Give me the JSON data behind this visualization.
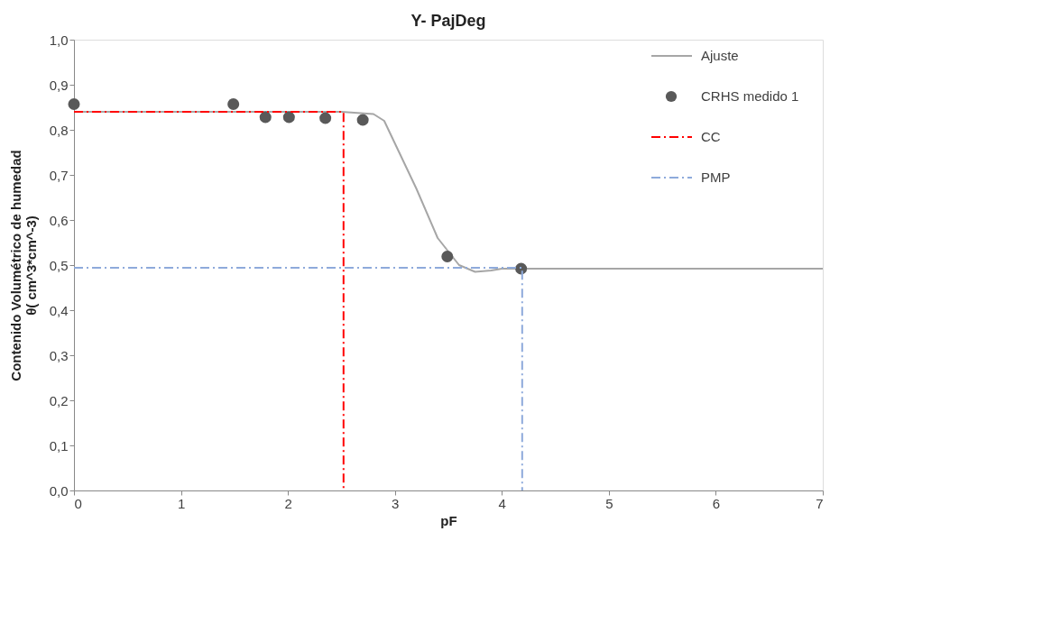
{
  "chart_data": {
    "type": "line",
    "title": "Y- PajDeg",
    "xlabel": "pF",
    "ylabel": "Contenido Volumétrico de humedad\nθ( cm^3*cm^-3)",
    "xlim": [
      0,
      7
    ],
    "xticks": [
      0,
      1,
      2,
      3,
      4,
      5,
      6,
      7
    ],
    "ylim": [
      0,
      1
    ],
    "yticks": [
      {
        "value": 0,
        "label": "0,0"
      },
      {
        "value": 0.1,
        "label": "0,1"
      },
      {
        "value": 0.2,
        "label": "0,2"
      },
      {
        "value": 0.3,
        "label": "0,3"
      },
      {
        "value": 0.4,
        "label": "0,4"
      },
      {
        "value": 0.5,
        "label": "0,5"
      },
      {
        "value": 0.6,
        "label": "0,6"
      },
      {
        "value": 0.7,
        "label": "0,7"
      },
      {
        "value": 0.8,
        "label": "0,8"
      },
      {
        "value": 0.9,
        "label": "0,9"
      },
      {
        "value": 1,
        "label": "1,0"
      }
    ],
    "grid": false,
    "legend": "top right",
    "series": [
      {
        "name": "Ajuste",
        "color": "#a6a6a6",
        "line_style": "solid",
        "x": [
          0,
          2.5,
          2.8,
          2.9,
          3.0,
          3.2,
          3.4,
          3.6,
          3.75,
          3.9,
          4.0,
          4.2,
          7
        ],
        "values": [
          0.84,
          0.84,
          0.835,
          0.82,
          0.77,
          0.67,
          0.56,
          0.5,
          0.485,
          0.488,
          0.492,
          0.492,
          0.492
        ]
      },
      {
        "name": "CRHS medido 1",
        "type": "scatter",
        "marker": "circle",
        "color": "#595959",
        "x": [
          0,
          1.49,
          1.79,
          2.01,
          2.35,
          2.7,
          3.49,
          4.18
        ],
        "values": [
          0.857,
          0.857,
          0.828,
          0.828,
          0.826,
          0.822,
          0.519,
          0.492
        ]
      },
      {
        "name": "CC",
        "color": "#ff0000",
        "line_style": "dashed",
        "x": [
          0,
          2.52,
          2.52
        ],
        "values": [
          0.84,
          0.84,
          0
        ]
      },
      {
        "name": "PMP",
        "color": "#8eaadb",
        "line_style": "dashed",
        "x": [
          0,
          4.19,
          4.19
        ],
        "values": [
          0.494,
          0.494,
          0
        ]
      }
    ]
  }
}
